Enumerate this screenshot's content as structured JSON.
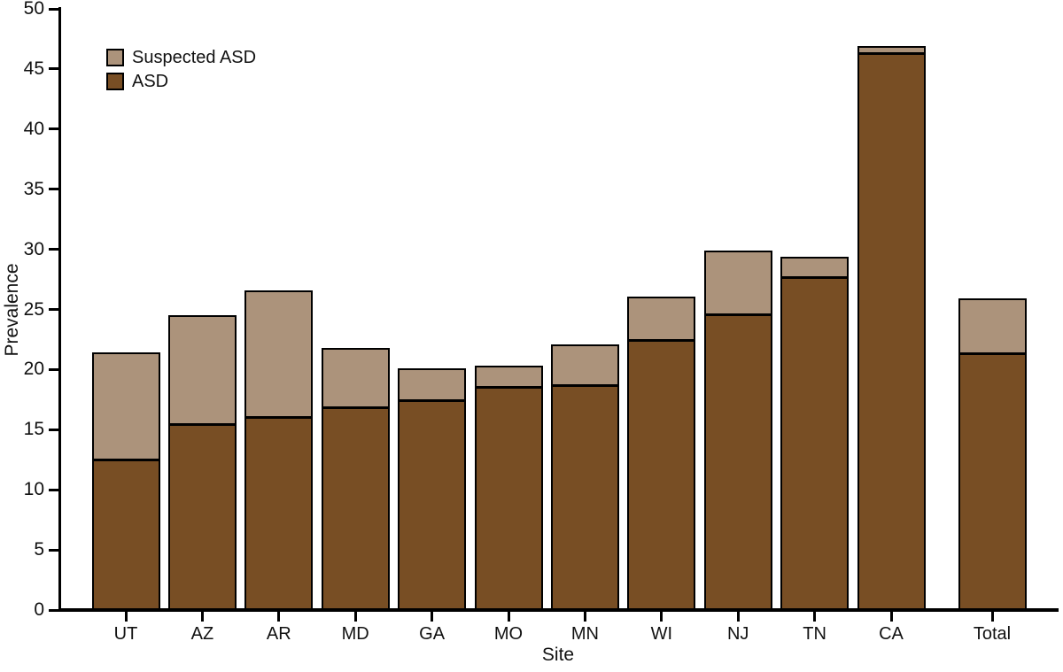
{
  "chart_data": {
    "type": "bar",
    "stacked": true,
    "title": "",
    "xlabel": "Site",
    "ylabel": "Prevalence",
    "ylim": [
      0,
      50
    ],
    "yticks": [
      0,
      5,
      10,
      15,
      20,
      25,
      30,
      35,
      40,
      45,
      50
    ],
    "grid": false,
    "categories": [
      "UT",
      "AZ",
      "AR",
      "MD",
      "GA",
      "MO",
      "MN",
      "WI",
      "NJ",
      "TN",
      "CA",
      "Total"
    ],
    "series": [
      {
        "name": "ASD",
        "color": "#784e24",
        "values": [
          12.6,
          15.6,
          16.2,
          17.0,
          17.6,
          18.7,
          18.8,
          22.6,
          24.7,
          27.8,
          46.4,
          21.5
        ]
      },
      {
        "name": "Suspected ASD",
        "color": "#ac937b",
        "values": [
          8.8,
          8.9,
          10.4,
          4.8,
          2.5,
          1.6,
          3.3,
          3.5,
          5.2,
          1.6,
          0.5,
          4.4
        ]
      }
    ],
    "legend": {
      "position": "top-left-inside",
      "entries": [
        {
          "label": "Suspected ASD",
          "color": "#ac937b"
        },
        {
          "label": "ASD",
          "color": "#784e24"
        }
      ]
    },
    "bar_border_color": "#000000"
  }
}
